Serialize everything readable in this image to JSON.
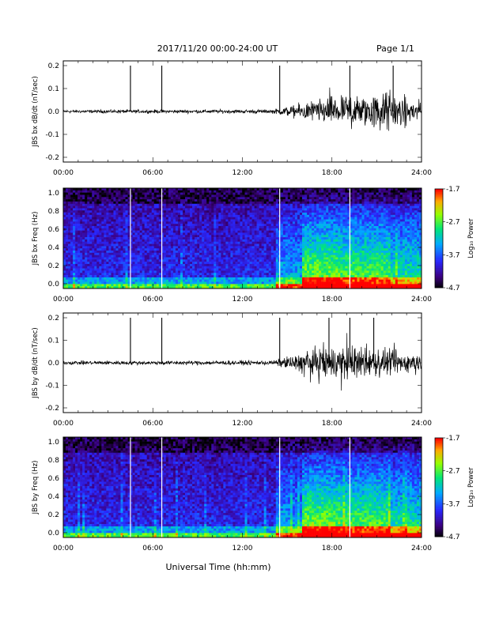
{
  "header": {
    "title": "2017/11/20  00:00-24:00 UT",
    "page": "Page 1/1"
  },
  "x_axis": {
    "ticks": [
      "00:00",
      "06:00",
      "12:00",
      "18:00",
      "24:00"
    ],
    "label": "Universal Time (hh:mm)"
  },
  "colorbar": {
    "ticks": [
      "-1.7",
      "-2.7",
      "-3.7",
      "-4.7"
    ],
    "label": "Log₁₀ Power"
  },
  "chart_data": [
    {
      "type": "line",
      "ylabel": "JBS bx dB/dt (nT/sec)",
      "xlim": [
        0,
        24
      ],
      "ylim": [
        -0.2,
        0.2
      ],
      "yticks": [
        "0.2",
        "0.1",
        "0.0",
        "-0.1",
        "-0.2"
      ],
      "spike_times_h": [
        4.5,
        6.6,
        14.5,
        19.2,
        22.1
      ],
      "activity_envelope": [
        [
          0,
          0.01
        ],
        [
          14,
          0.012
        ],
        [
          15.5,
          0.04
        ],
        [
          17,
          0.07
        ],
        [
          18,
          0.09
        ],
        [
          20,
          0.1
        ],
        [
          21.5,
          0.12
        ],
        [
          24,
          0.06
        ]
      ]
    },
    {
      "type": "heatmap",
      "ylabel": "JBS bx Freq (Hz)",
      "xlim": [
        0,
        24
      ],
      "ylim": [
        0,
        1.0
      ],
      "yticks": [
        "1.0",
        "0.8",
        "0.6",
        "0.4",
        "0.2",
        "0.0"
      ],
      "clim": [
        -4.7,
        -1.7
      ],
      "gap_times_h": [
        4.5,
        6.6,
        14.5,
        19.2
      ]
    },
    {
      "type": "line",
      "ylabel": "JBS by dB/dt (nT/sec)",
      "xlim": [
        0,
        24
      ],
      "ylim": [
        -0.2,
        0.2
      ],
      "yticks": [
        "0.2",
        "0.1",
        "0.0",
        "-0.1",
        "-0.2"
      ],
      "spike_times_h": [
        4.5,
        6.6,
        14.5,
        17.8,
        19.2,
        20.8
      ],
      "activity_envelope": [
        [
          0,
          0.012
        ],
        [
          14,
          0.014
        ],
        [
          15.5,
          0.05
        ],
        [
          17,
          0.1
        ],
        [
          18,
          0.11
        ],
        [
          20,
          0.1
        ],
        [
          22,
          0.08
        ],
        [
          24,
          0.05
        ]
      ]
    },
    {
      "type": "heatmap",
      "ylabel": "JBS by Freq (Hz)",
      "xlim": [
        0,
        24
      ],
      "ylim": [
        0,
        1.0
      ],
      "yticks": [
        "1.0",
        "0.8",
        "0.6",
        "0.4",
        "0.2",
        "0.0"
      ],
      "clim": [
        -4.7,
        -1.7
      ],
      "gap_times_h": [
        4.5,
        6.6,
        14.5,
        19.2
      ]
    }
  ]
}
